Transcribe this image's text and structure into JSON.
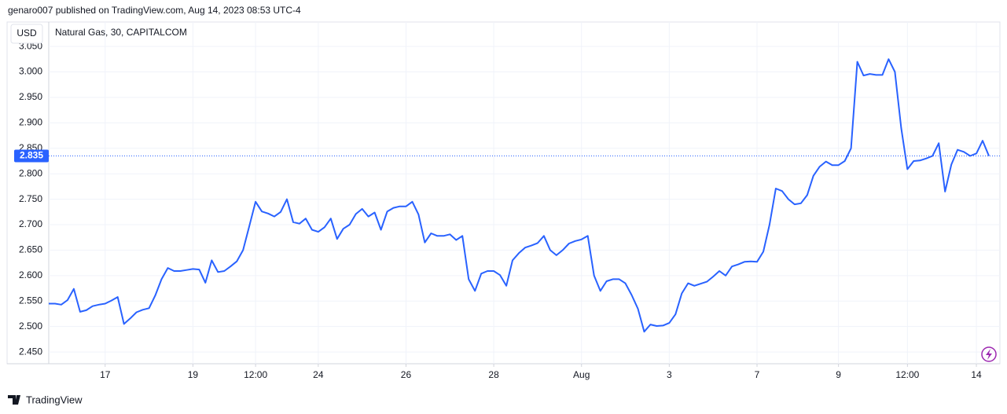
{
  "header": {
    "published": "genaro007 published on TradingView.com, Aug 14, 2023 08:53 UTC-4"
  },
  "chart_data": {
    "type": "line",
    "currency": "USD",
    "categories": [
      null,
      null,
      null,
      null,
      null,
      null,
      null,
      null,
      null,
      "17",
      null,
      null,
      null,
      null,
      null,
      null,
      null,
      null,
      null,
      null,
      null,
      null,
      null,
      "19",
      null,
      null,
      null,
      null,
      null,
      null,
      null,
      null,
      null,
      "12:00",
      null,
      null,
      null,
      null,
      null,
      null,
      null,
      null,
      null,
      "24",
      null,
      null,
      null,
      null,
      null,
      null,
      null,
      null,
      null,
      null,
      null,
      null,
      null,
      "26",
      null,
      null,
      null,
      null,
      null,
      null,
      null,
      null,
      null,
      null,
      null,
      null,
      null,
      "28",
      null,
      null,
      null,
      null,
      null,
      null,
      null,
      null,
      null,
      null,
      null,
      null,
      null,
      "Aug",
      null,
      null,
      null,
      null,
      null,
      null,
      null,
      null,
      null,
      null,
      null,
      null,
      null,
      "3",
      null,
      null,
      null,
      null,
      null,
      null,
      null,
      null,
      null,
      null,
      null,
      null,
      null,
      "7",
      null,
      null,
      null,
      null,
      null,
      null,
      null,
      null,
      null,
      null,
      null,
      null,
      "9",
      null,
      null,
      null,
      null,
      null,
      null,
      null,
      null,
      null,
      null,
      "12:00",
      null,
      null,
      null,
      null,
      null,
      null,
      null,
      null,
      null,
      null,
      "14",
      null,
      null
    ],
    "series": [
      {
        "name": "Natural Gas, 30, CAPITALCOM",
        "color": "#2962ff",
        "values": [
          2.545,
          2.545,
          2.543,
          2.552,
          2.574,
          2.529,
          2.532,
          2.54,
          2.543,
          2.545,
          2.551,
          2.558,
          2.505,
          2.516,
          2.528,
          2.533,
          2.536,
          2.561,
          2.593,
          2.615,
          2.609,
          2.609,
          2.611,
          2.613,
          2.612,
          2.586,
          2.63,
          2.607,
          2.609,
          2.618,
          2.628,
          2.65,
          2.697,
          2.745,
          2.726,
          2.722,
          2.716,
          2.725,
          2.75,
          2.705,
          2.702,
          2.712,
          2.69,
          2.686,
          2.695,
          2.712,
          2.672,
          2.692,
          2.7,
          2.721,
          2.731,
          2.716,
          2.724,
          2.69,
          2.726,
          2.733,
          2.736,
          2.736,
          2.745,
          2.72,
          2.665,
          2.683,
          2.678,
          2.678,
          2.681,
          2.67,
          2.678,
          2.593,
          2.57,
          2.604,
          2.609,
          2.609,
          2.601,
          2.58,
          2.63,
          2.644,
          2.655,
          2.659,
          2.664,
          2.678,
          2.65,
          2.64,
          2.65,
          2.663,
          2.668,
          2.671,
          2.678,
          2.6,
          2.57,
          2.589,
          2.593,
          2.593,
          2.585,
          2.562,
          2.535,
          2.49,
          2.504,
          2.501,
          2.502,
          2.507,
          2.524,
          2.565,
          2.585,
          2.58,
          2.584,
          2.588,
          2.598,
          2.609,
          2.6,
          2.618,
          2.622,
          2.627,
          2.628,
          2.627,
          2.647,
          2.7,
          2.771,
          2.766,
          2.75,
          2.74,
          2.742,
          2.758,
          2.796,
          2.814,
          2.824,
          2.817,
          2.817,
          2.825,
          2.85,
          3.02,
          2.993,
          2.996,
          2.994,
          2.994,
          3.025,
          3.0,
          2.89,
          2.809,
          2.825,
          2.826,
          2.83,
          2.835,
          2.86,
          2.765,
          2.818,
          2.847,
          2.843,
          2.835,
          2.84,
          2.865,
          2.835
        ]
      }
    ],
    "last_value": 2.835,
    "ylim": [
      2.427,
      3.098
    ],
    "yticks": [
      {
        "value": 2.45,
        "label": "2.450"
      },
      {
        "value": 2.5,
        "label": "2.500"
      },
      {
        "value": 2.55,
        "label": "2.550"
      },
      {
        "value": 2.6,
        "label": "2.600"
      },
      {
        "value": 2.65,
        "label": "2.650"
      },
      {
        "value": 2.7,
        "label": "2.700"
      },
      {
        "value": 2.75,
        "label": "2.750"
      },
      {
        "value": 2.8,
        "label": "2.800"
      },
      {
        "value": 2.85,
        "label": "2.850"
      },
      {
        "value": 2.9,
        "label": "2.900"
      },
      {
        "value": 2.95,
        "label": "2.950"
      },
      {
        "value": 3.0,
        "label": "3.000"
      },
      {
        "value": 3.05,
        "label": "3.050"
      }
    ],
    "grid": true
  },
  "footer": {
    "brand": "TradingView"
  }
}
